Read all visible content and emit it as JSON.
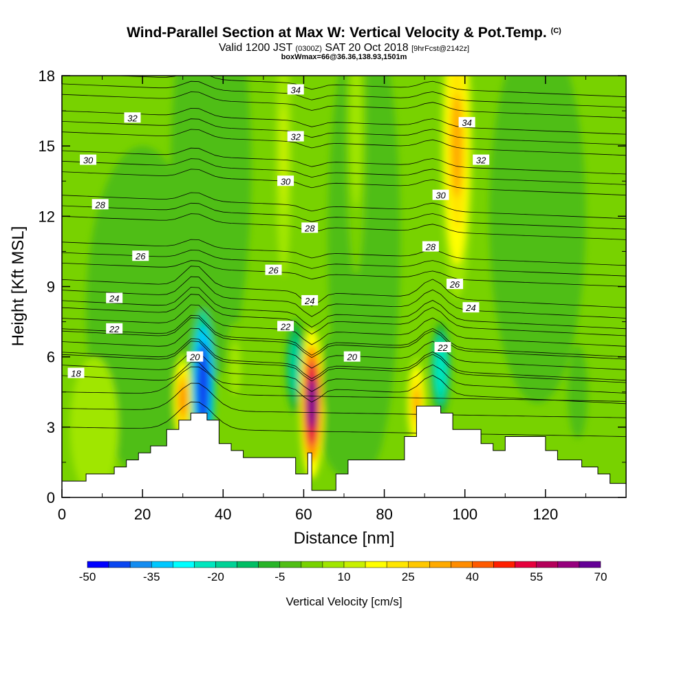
{
  "chart_data": {
    "type": "heatmap",
    "title": "Wind-Parallel Section at Max W: Vertical Velocity & Pot.Temp.",
    "title_mark": "(C)",
    "subtitle_prefix": "Valid 1200 JST",
    "subtitle_small": "(0300Z)",
    "subtitle_main": "SAT 20 Oct 2018",
    "subtitle_suffix": "[9hrFcst@2142z]",
    "info_line": "boxWmax=66@36.36,138.93,1501m",
    "xlabel": "Distance [nm]",
    "ylabel": "Height [Kft MSL]",
    "xlim": [
      0,
      140
    ],
    "ylim": [
      0,
      18
    ],
    "xticks": [
      "0",
      "20",
      "40",
      "60",
      "80",
      "100",
      "120"
    ],
    "yticks": [
      "0",
      "3",
      "6",
      "9",
      "12",
      "15",
      "18"
    ],
    "colorbar": {
      "title": "Vertical Velocity [cm/s]",
      "labels": [
        "-50",
        "-35",
        "-20",
        "-5",
        "10",
        "25",
        "40",
        "55",
        "70"
      ],
      "levels": [
        -50,
        -45,
        -40,
        -35,
        -30,
        -25,
        -20,
        -15,
        -10,
        -5,
        0,
        5,
        10,
        15,
        20,
        25,
        30,
        35,
        40,
        45,
        50,
        55,
        60,
        65,
        70
      ],
      "colors": [
        "#0000ff",
        "#0a46f0",
        "#148cf0",
        "#00c8ff",
        "#00ffff",
        "#00e6be",
        "#00d296",
        "#00be64",
        "#28b428",
        "#50be14",
        "#78d200",
        "#a0e600",
        "#c8f000",
        "#ffff00",
        "#ffe600",
        "#ffc800",
        "#ffaa00",
        "#ff8c00",
        "#ff5a00",
        "#ff1e00",
        "#e6003c",
        "#b4005a",
        "#96007d",
        "#640096"
      ]
    },
    "velocity_features": [
      {
        "x": 30,
        "y": 4.2,
        "w": 35
      },
      {
        "x": 35,
        "y": 4.8,
        "w": -45
      },
      {
        "x": 43,
        "y": 5.5,
        "w": 8
      },
      {
        "x": 58,
        "y": 5.6,
        "w": -18
      },
      {
        "x": 62,
        "y": 4.0,
        "w": 70
      },
      {
        "x": 67,
        "y": 5.0,
        "w": -5
      },
      {
        "x": 88,
        "y": 4.0,
        "w": 30
      },
      {
        "x": 94,
        "y": 5.5,
        "w": -25
      },
      {
        "x": 98,
        "y": 15.0,
        "w": 30
      },
      {
        "x": 55,
        "y": 14.5,
        "w": 12
      },
      {
        "x": 73,
        "y": 16.0,
        "w": 8
      },
      {
        "x": 128,
        "y": 4.5,
        "w": -5
      }
    ],
    "terrain": [
      [
        0,
        0.7
      ],
      [
        6,
        0.7
      ],
      [
        6,
        1.0
      ],
      [
        13,
        1.0
      ],
      [
        13,
        1.3
      ],
      [
        16,
        1.3
      ],
      [
        16,
        1.6
      ],
      [
        19,
        1.6
      ],
      [
        19,
        1.9
      ],
      [
        22,
        1.9
      ],
      [
        22,
        2.2
      ],
      [
        26,
        2.2
      ],
      [
        26,
        2.9
      ],
      [
        29,
        2.9
      ],
      [
        29,
        3.3
      ],
      [
        32,
        3.3
      ],
      [
        32,
        3.6
      ],
      [
        36,
        3.6
      ],
      [
        36,
        3.3
      ],
      [
        39,
        3.3
      ],
      [
        39,
        2.3
      ],
      [
        42,
        2.3
      ],
      [
        42,
        2.0
      ],
      [
        45,
        2.0
      ],
      [
        45,
        1.7
      ],
      [
        58,
        1.7
      ],
      [
        58,
        1.0
      ],
      [
        61,
        1.0
      ],
      [
        61,
        1.9
      ],
      [
        62,
        1.9
      ],
      [
        62,
        0.3
      ],
      [
        68,
        0.3
      ],
      [
        68,
        1.0
      ],
      [
        71,
        1.0
      ],
      [
        71,
        1.6
      ],
      [
        85,
        1.6
      ],
      [
        85,
        2.6
      ],
      [
        88,
        2.6
      ],
      [
        88,
        3.9
      ],
      [
        94,
        3.9
      ],
      [
        94,
        3.6
      ],
      [
        97,
        3.6
      ],
      [
        97,
        2.9
      ],
      [
        104,
        2.9
      ],
      [
        104,
        2.3
      ],
      [
        107,
        2.3
      ],
      [
        107,
        2.0
      ],
      [
        110,
        2.0
      ],
      [
        110,
        2.6
      ],
      [
        120,
        2.6
      ],
      [
        120,
        2.0
      ],
      [
        123,
        2.0
      ],
      [
        123,
        1.6
      ],
      [
        129,
        1.6
      ],
      [
        129,
        1.3
      ],
      [
        133,
        1.3
      ],
      [
        133,
        1.0
      ],
      [
        136,
        1.0
      ],
      [
        136,
        0.6
      ],
      [
        140,
        0.6
      ]
    ],
    "contour_labels": [
      {
        "text": "18",
        "x": 3.5,
        "y": 5.3
      },
      {
        "text": "20",
        "x": 33,
        "y": 6.0
      },
      {
        "text": "20",
        "x": 72,
        "y": 6.0
      },
      {
        "text": "22",
        "x": 13,
        "y": 7.2
      },
      {
        "text": "22",
        "x": 55.5,
        "y": 7.3
      },
      {
        "text": "22",
        "x": 94.5,
        "y": 6.4
      },
      {
        "text": "24",
        "x": 13,
        "y": 8.5
      },
      {
        "text": "24",
        "x": 61.5,
        "y": 8.4
      },
      {
        "text": "24",
        "x": 101.5,
        "y": 8.1
      },
      {
        "text": "26",
        "x": 19.5,
        "y": 10.3
      },
      {
        "text": "26",
        "x": 52.5,
        "y": 9.7
      },
      {
        "text": "26",
        "x": 97.5,
        "y": 9.1
      },
      {
        "text": "28",
        "x": 9.5,
        "y": 12.5
      },
      {
        "text": "28",
        "x": 61.5,
        "y": 11.5
      },
      {
        "text": "28",
        "x": 91.5,
        "y": 10.7
      },
      {
        "text": "30",
        "x": 6.5,
        "y": 14.4
      },
      {
        "text": "30",
        "x": 55.5,
        "y": 13.5
      },
      {
        "text": "30",
        "x": 94,
        "y": 12.9
      },
      {
        "text": "32",
        "x": 17.5,
        "y": 16.2
      },
      {
        "text": "32",
        "x": 58,
        "y": 15.4
      },
      {
        "text": "32",
        "x": 104,
        "y": 14.4
      },
      {
        "text": "34",
        "x": 58,
        "y": 17.4
      },
      {
        "text": "34",
        "x": 100.5,
        "y": 16.0
      }
    ]
  }
}
